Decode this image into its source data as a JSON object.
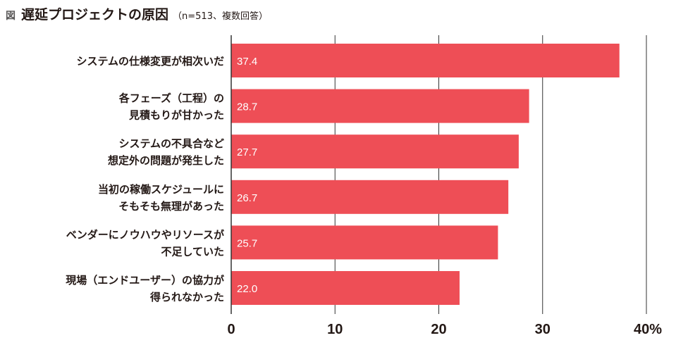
{
  "header": {
    "figure_tag": "図",
    "title": "遅延プロジェクトの原因",
    "subtitle": "（n=513、複数回答）"
  },
  "colors": {
    "bar": "#EE4E56",
    "grid": "#333333",
    "text": "#231815",
    "value_text": "#ffffff"
  },
  "chart_data": {
    "type": "bar",
    "orientation": "horizontal",
    "title": "遅延プロジェクトの原因",
    "subtitle": "（n=513、複数回答）",
    "categories": [
      [
        "システムの仕様変更が相次いだ"
      ],
      [
        "各フェーズ（工程）の",
        "見積もりが甘かった"
      ],
      [
        "システムの不具合など",
        "想定外の問題が発生した"
      ],
      [
        "当初の稼働スケジュールに",
        "そもそも無理があった"
      ],
      [
        "ベンダーにノウハウやリソースが",
        "不足していた"
      ],
      [
        "現場（エンドユーザー）の協力が",
        "得られなかった"
      ]
    ],
    "values": [
      37.4,
      28.7,
      27.7,
      26.7,
      25.7,
      22.0
    ],
    "value_labels": [
      "37.4",
      "28.7",
      "27.7",
      "26.7",
      "25.7",
      "22.0"
    ],
    "xlim": [
      0,
      40
    ],
    "ticks": [
      {
        "value": 0,
        "label": "0"
      },
      {
        "value": 10,
        "label": "10"
      },
      {
        "value": 20,
        "label": "20"
      },
      {
        "value": 30,
        "label": "30"
      },
      {
        "value": 40,
        "label": "40%"
      }
    ],
    "grid": true,
    "legend": "none"
  }
}
